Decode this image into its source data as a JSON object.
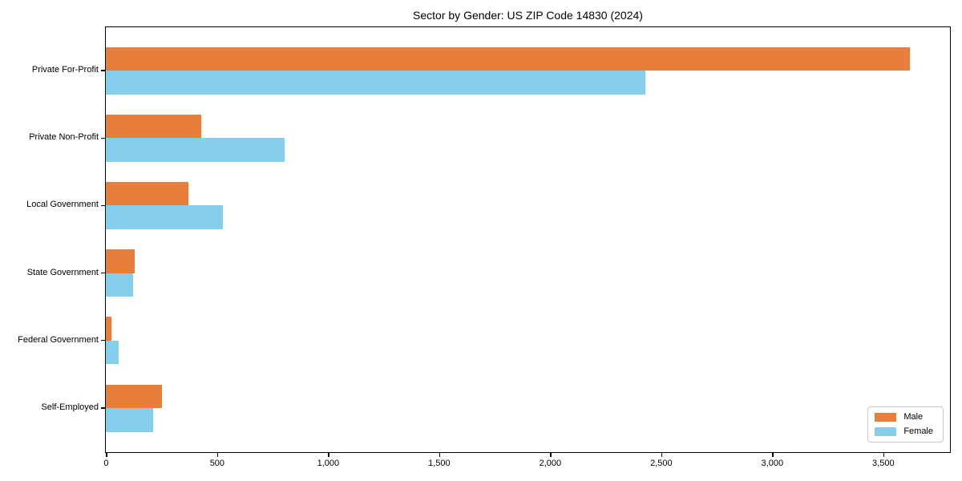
{
  "chart_data": {
    "type": "bar",
    "orientation": "horizontal",
    "title": "Sector by Gender: US ZIP Code 14830 (2024)",
    "categories": [
      "Private For-Profit",
      "Private Non-Profit",
      "Local Government",
      "State Government",
      "Federal Government",
      "Self-Employed"
    ],
    "series": [
      {
        "name": "Male",
        "color": "#E87E3C",
        "values": [
          3620,
          430,
          370,
          130,
          25,
          250
        ]
      },
      {
        "name": "Female",
        "color": "#87CEEB",
        "values": [
          2430,
          805,
          525,
          120,
          55,
          210
        ]
      }
    ],
    "xlabel": "",
    "ylabel": "",
    "xlim": [
      0,
      3800
    ],
    "xticks": [
      0,
      500,
      1000,
      1500,
      2000,
      2500,
      3000,
      3500
    ],
    "xtick_labels": [
      "0",
      "500",
      "1,000",
      "1,500",
      "2,000",
      "2,500",
      "3,000",
      "3,500"
    ],
    "grid": false,
    "background_color": "#ffffff",
    "axis_color": "#000000",
    "legend": {
      "position": "lower-right",
      "entries": [
        {
          "label": "Male",
          "color": "#E87E3C"
        },
        {
          "label": "Female",
          "color": "#87CEEB"
        }
      ]
    }
  }
}
